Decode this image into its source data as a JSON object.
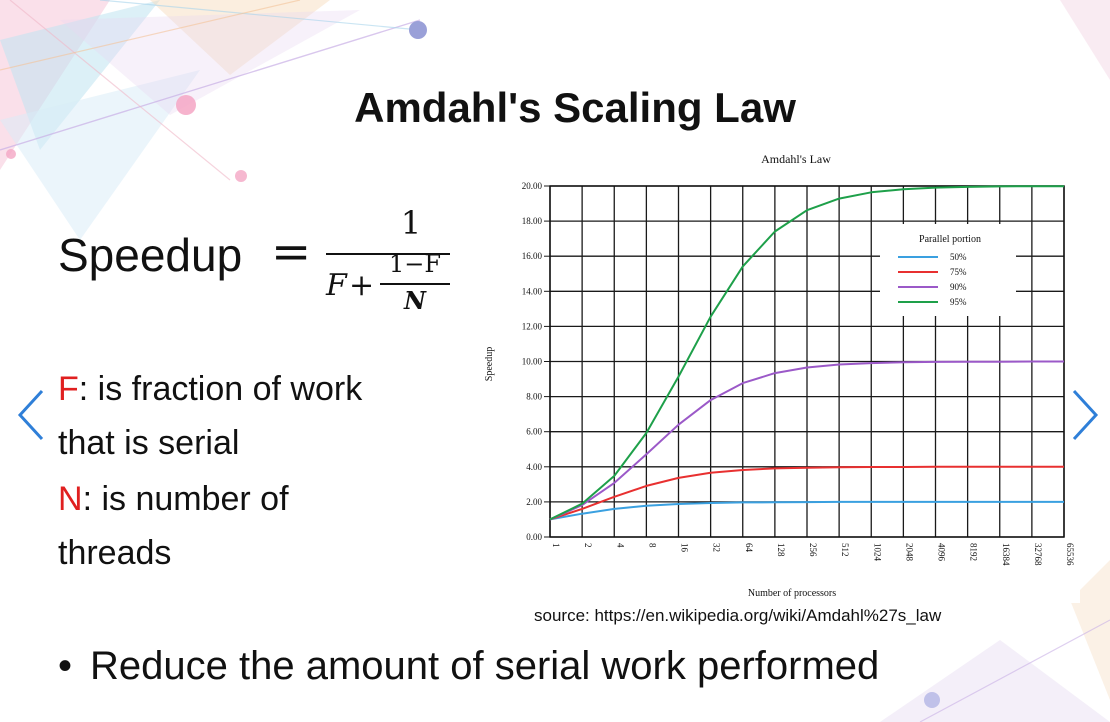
{
  "slide": {
    "title": "Amdahl's Scaling Law",
    "formula": {
      "lhs": "Speedup",
      "equals": "=",
      "numerator": "1",
      "den_f": "F",
      "den_plus": "+",
      "sub_numerator": "1−F",
      "sub_denominator": "N"
    },
    "definitions": [
      {
        "var": "F",
        "text_lines": [
          ": is fraction of work",
          "that is serial"
        ]
      },
      {
        "var": "N",
        "text_lines": [
          ":  is number of",
          "threads"
        ]
      }
    ],
    "source": "source: https://en.wikipedia.org/wiki/Amdahl%27s_law",
    "bullet": "Reduce the amount of serial work performed",
    "colors": {
      "accent": "#e02020",
      "nav": "#2f7fd8"
    },
    "icons": [
      "chevron-left-icon",
      "chevron-right-icon"
    ]
  },
  "chart_data": {
    "type": "line",
    "title": "Amdahl's Law",
    "xlabel": "Number of processors",
    "ylabel": "Speedup",
    "x": [
      1,
      2,
      4,
      8,
      16,
      32,
      64,
      128,
      256,
      512,
      1024,
      2048,
      4096,
      8192,
      16384,
      32768,
      65536
    ],
    "x_scale": "log2",
    "x_tick_labels": [
      "1",
      "2",
      "4",
      "8",
      "16",
      "32",
      "64",
      "128",
      "256",
      "512",
      "1024",
      "2048",
      "4096",
      "8192",
      "16384",
      "32768",
      "65536"
    ],
    "ylim": [
      0,
      20
    ],
    "y_ticks": [
      0,
      2,
      4,
      6,
      8,
      10,
      12,
      14,
      16,
      18,
      20
    ],
    "y_tick_labels": [
      "0.00",
      "2.00",
      "4.00",
      "6.00",
      "8.00",
      "10.00",
      "12.00",
      "14.00",
      "16.00",
      "18.00",
      "20.00"
    ],
    "grid": true,
    "legend_title": "Parallel portion",
    "legend_position": "top-right",
    "series": [
      {
        "name": "50%",
        "color": "#3aa0e0",
        "values": [
          1.0,
          1.33,
          1.6,
          1.78,
          1.88,
          1.94,
          1.97,
          1.98,
          1.99,
          2.0,
          2.0,
          2.0,
          2.0,
          2.0,
          2.0,
          2.0,
          2.0
        ]
      },
      {
        "name": "75%",
        "color": "#e83030",
        "values": [
          1.0,
          1.6,
          2.29,
          2.91,
          3.37,
          3.66,
          3.82,
          3.91,
          3.95,
          3.98,
          3.99,
          3.99,
          4.0,
          4.0,
          4.0,
          4.0,
          4.0
        ]
      },
      {
        "name": "90%",
        "color": "#9b59c8",
        "values": [
          1.0,
          1.82,
          3.08,
          4.71,
          6.4,
          7.8,
          8.77,
          9.34,
          9.66,
          9.83,
          9.91,
          9.96,
          9.98,
          9.99,
          9.99,
          10.0,
          10.0
        ]
      },
      {
        "name": "95%",
        "color": "#1ea04a",
        "values": [
          1.0,
          1.9,
          3.48,
          5.93,
          9.14,
          12.55,
          15.42,
          17.41,
          18.62,
          19.28,
          19.64,
          19.82,
          19.91,
          19.95,
          19.98,
          19.99,
          19.99
        ]
      }
    ]
  }
}
